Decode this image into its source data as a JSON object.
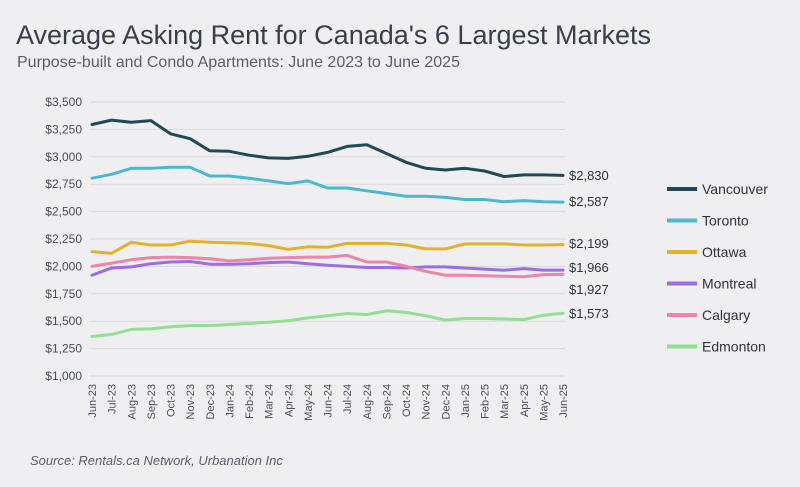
{
  "header": {
    "title": "Average Asking Rent for Canada's 6 Largest Markets",
    "subtitle": "Purpose-built and Condo Apartments: June 2023 to June 2025"
  },
  "footer": {
    "source": "Source: Rentals.ca Network, Urbanation Inc"
  },
  "chart_data": {
    "type": "line",
    "title": "Average Asking Rent for Canada's 6 Largest Markets",
    "subtitle": "Purpose-built and Condo Apartments: June 2023 to June 2025",
    "xlabel": "",
    "ylabel": "",
    "ylim": [
      1000,
      3500
    ],
    "yticks": [
      1000,
      1250,
      1500,
      1750,
      2000,
      2250,
      2500,
      2750,
      3000,
      3250,
      3500
    ],
    "ytick_labels": [
      "$1,000",
      "$1,250",
      "$1,500",
      "$1,750",
      "$2,000",
      "$2,250",
      "$2,500",
      "$2,750",
      "$3,000",
      "$3,250",
      "$3,500"
    ],
    "grid": true,
    "legend_position": "right",
    "categories": [
      "Jun-23",
      "Jul-23",
      "Aug-23",
      "Sep-23",
      "Oct-23",
      "Nov-23",
      "Dec-23",
      "Jan-24",
      "Feb-24",
      "Mar-24",
      "Apr-24",
      "May-24",
      "Jun-24",
      "Jul-24",
      "Aug-24",
      "Sep-24",
      "Oct-24",
      "Nov-24",
      "Dec-24",
      "Jan-25",
      "Feb-25",
      "Mar-25",
      "Apr-25",
      "May-25",
      "Jun-25"
    ],
    "series": [
      {
        "name": "Vancouver",
        "color": "#1f4a55",
        "end_label": "$2,830",
        "values": [
          3295,
          3335,
          3315,
          3330,
          3210,
          3165,
          3055,
          3050,
          3015,
          2990,
          2985,
          3005,
          3040,
          3095,
          3110,
          3030,
          2950,
          2895,
          2880,
          2895,
          2870,
          2820,
          2835,
          2835,
          2830
        ]
      },
      {
        "name": "Toronto",
        "color": "#4ab8d2",
        "end_label": "$2,587",
        "values": [
          2805,
          2840,
          2895,
          2895,
          2905,
          2905,
          2825,
          2825,
          2805,
          2780,
          2755,
          2780,
          2715,
          2715,
          2690,
          2665,
          2640,
          2640,
          2630,
          2610,
          2610,
          2590,
          2600,
          2590,
          2587
        ]
      },
      {
        "name": "Ottawa",
        "color": "#e6b12a",
        "end_label": "$2,199",
        "values": [
          2135,
          2120,
          2220,
          2195,
          2195,
          2230,
          2220,
          2215,
          2210,
          2190,
          2155,
          2180,
          2175,
          2210,
          2210,
          2210,
          2195,
          2160,
          2160,
          2205,
          2205,
          2205,
          2195,
          2195,
          2199
        ]
      },
      {
        "name": "Montreal",
        "color": "#9b6fe0",
        "end_label": "$1,966",
        "values": [
          1920,
          1985,
          1995,
          2025,
          2040,
          2045,
          2020,
          2020,
          2025,
          2035,
          2040,
          2025,
          2010,
          2000,
          1990,
          1990,
          1985,
          1995,
          1995,
          1985,
          1975,
          1965,
          1980,
          1966,
          1966
        ]
      },
      {
        "name": "Calgary",
        "color": "#ee83ab",
        "end_label": "$1,927",
        "values": [
          2000,
          2030,
          2060,
          2080,
          2085,
          2080,
          2070,
          2050,
          2060,
          2075,
          2080,
          2085,
          2085,
          2100,
          2040,
          2040,
          2000,
          1955,
          1920,
          1920,
          1915,
          1910,
          1905,
          1925,
          1927
        ]
      },
      {
        "name": "Edmonton",
        "color": "#90e08f",
        "end_label": "$1,573",
        "values": [
          1360,
          1380,
          1425,
          1430,
          1450,
          1460,
          1460,
          1470,
          1480,
          1490,
          1505,
          1530,
          1550,
          1570,
          1560,
          1595,
          1580,
          1550,
          1510,
          1525,
          1525,
          1520,
          1515,
          1555,
          1573
        ]
      }
    ]
  }
}
